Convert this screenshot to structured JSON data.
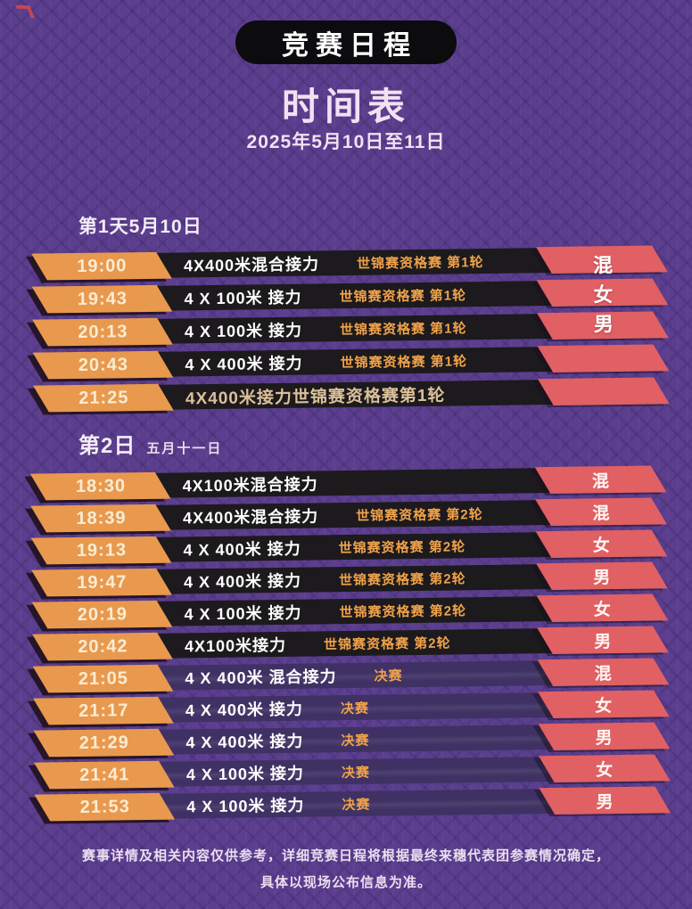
{
  "header": {
    "badge": "竞赛日程",
    "title": "时间表",
    "date_range": "2025年5月10日至11日"
  },
  "days": [
    {
      "title": "第1天5月10日",
      "subtitle": "",
      "side_labels": [
        "混",
        "女",
        "男"
      ],
      "rows": [
        {
          "time": "19:00",
          "event": "4X400米混合接力",
          "stage": "世锦赛资格赛 第1轮",
          "category": "",
          "final": false,
          "muted": false
        },
        {
          "time": "19:43",
          "event": "4 X 100米 接力",
          "stage": "世锦赛资格赛 第1轮",
          "category": "",
          "final": false,
          "muted": false
        },
        {
          "time": "20:13",
          "event": "4 X 100米 接力",
          "stage": "世锦赛资格赛 第1轮",
          "category": "",
          "final": false,
          "muted": false
        },
        {
          "time": "20:43",
          "event": "4 X 400米 接力",
          "stage": "世锦赛资格赛 第1轮",
          "category": "",
          "final": false,
          "muted": false
        },
        {
          "time": "21:25",
          "event": "",
          "stage": "4X400米接力世锦赛资格赛第1轮",
          "category": "",
          "final": false,
          "muted": true
        }
      ]
    },
    {
      "title": "第2日",
      "subtitle": "五月十一日",
      "side_labels": [],
      "rows": [
        {
          "time": "18:30",
          "event": "4X100米混合接力",
          "stage": "",
          "category": "混",
          "final": false,
          "muted": false
        },
        {
          "time": "18:39",
          "event": "4X400米混合接力",
          "stage": "世锦赛资格赛 第2轮",
          "category": "混",
          "final": false,
          "muted": false
        },
        {
          "time": "19:13",
          "event": "4 X 400米 接力",
          "stage": "世锦赛资格赛 第2轮",
          "category": "女",
          "final": false,
          "muted": false
        },
        {
          "time": "19:47",
          "event": "4 X 400米 接力",
          "stage": "世锦赛资格赛 第2轮",
          "category": "男",
          "final": false,
          "muted": false
        },
        {
          "time": "20:19",
          "event": "4 X 100米 接力",
          "stage": "世锦赛资格赛 第2轮",
          "category": "女",
          "final": false,
          "muted": false
        },
        {
          "time": "20:42",
          "event": "4X100米接力",
          "stage": "世锦赛资格赛 第2轮",
          "category": "男",
          "final": false,
          "muted": false
        },
        {
          "time": "21:05",
          "event": "4 X 400米 混合接力",
          "stage": "决赛",
          "category": "混",
          "final": true,
          "muted": false
        },
        {
          "time": "21:17",
          "event": "4 X 400米 接力",
          "stage": "决赛",
          "category": "女",
          "final": true,
          "muted": false
        },
        {
          "time": "21:29",
          "event": "4 X 400米 接力",
          "stage": "决赛",
          "category": "男",
          "final": true,
          "muted": false
        },
        {
          "time": "21:41",
          "event": "4 X 100米 接力",
          "stage": "决赛",
          "category": "女",
          "final": true,
          "muted": false
        },
        {
          "time": "21:53",
          "event": "4 X 100米 接力",
          "stage": "决赛",
          "category": "男",
          "final": true,
          "muted": false
        }
      ]
    }
  ],
  "footer": {
    "line1": "赛事详情及相关内容仅供参考，详细竞赛日程将根据最终来穗代表团参赛情况确定，",
    "line2": "具体以现场公布信息为准。"
  },
  "colors": {
    "background": "#5b3e8e",
    "bar_black": "#1c1a1c",
    "bar_final": "#3f3163",
    "chip_orange": "#e8994e",
    "chip_red": "#e06064",
    "stage_orange": "#efa14a",
    "muted_tan": "#dbc09a",
    "title_lavender": "#f3e0f3",
    "time_cream": "#fcecd2"
  }
}
